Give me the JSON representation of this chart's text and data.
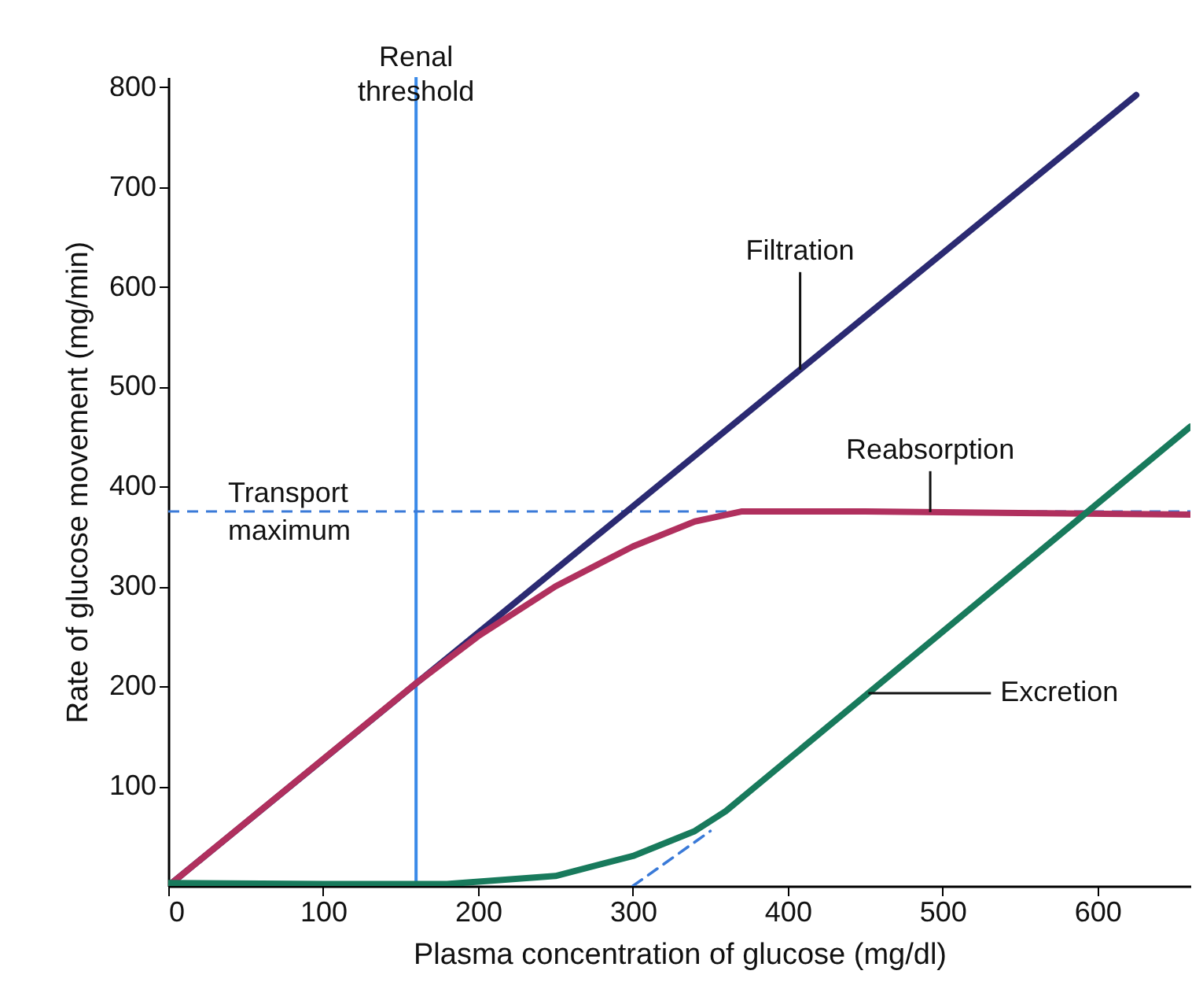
{
  "chart_data": {
    "type": "line",
    "xlabel": "Plasma concentration of glucose (mg/dl)",
    "ylabel": "Rate of glucose movement (mg/min)",
    "xlim": [
      0,
      660
    ],
    "ylim": [
      0,
      810
    ],
    "xticks": [
      0,
      100,
      200,
      300,
      400,
      500,
      600
    ],
    "yticks": [
      100,
      200,
      300,
      400,
      500,
      600,
      700,
      800
    ],
    "grid": false,
    "series": [
      {
        "name": "Filtration",
        "color": "#2b2a72",
        "x": [
          0,
          625
        ],
        "values": [
          0,
          792
        ]
      },
      {
        "name": "Reabsorption",
        "color": "#b0305e",
        "x": [
          0,
          100,
          160,
          200,
          250,
          300,
          340,
          370,
          450,
          660
        ],
        "values": [
          0,
          127,
          203,
          250,
          300,
          340,
          365,
          375,
          375,
          372
        ]
      },
      {
        "name": "Excretion",
        "color": "#187a5c",
        "x": [
          0,
          100,
          180,
          250,
          300,
          340,
          360,
          660
        ],
        "values": [
          3,
          2,
          2,
          10,
          30,
          55,
          75,
          460
        ]
      },
      {
        "color": "#3a7ad8",
        "line_style": "dashed",
        "x": [
          300,
          350
        ],
        "values": [
          0,
          55
        ]
      }
    ],
    "ref_lines": [
      {
        "axis": "x",
        "value": 160,
        "label": "Renal threshold",
        "color": "#3a8ae8"
      },
      {
        "axis": "y",
        "value": 375,
        "label": "Transport maximum",
        "color": "#3a7ad8",
        "line_style": "dashed"
      }
    ]
  }
}
